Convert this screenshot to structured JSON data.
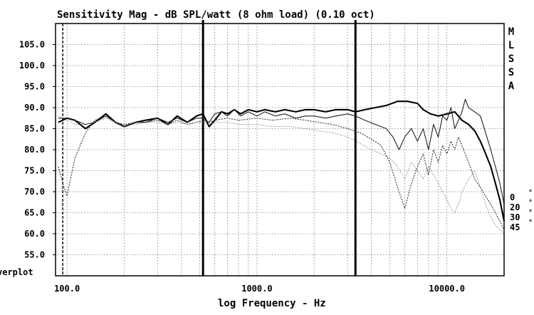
{
  "chart_data": {
    "type": "line",
    "title": "Sensitivity Mag - dB SPL/watt (8 ohm load) (0.10 oct)",
    "xlabel": "log Frequency - Hz",
    "ylabel": "",
    "xscale": "log",
    "xlim": [
      87,
      20000
    ],
    "ylim": [
      50,
      110
    ],
    "yticks": [
      "105.0",
      "100.0",
      "95.0",
      "90.0",
      "85.0",
      "80.0",
      "75.0",
      "70.0",
      "65.0",
      "60.0",
      "55.0"
    ],
    "xticks": [
      "100.0",
      "1000.0",
      "10000.0"
    ],
    "grid": true,
    "side_label": "MLSSA",
    "overlay_label": "verplot",
    "vertical_markers_hz": [
      520,
      3300
    ],
    "legend": [
      "0",
      "20",
      "30",
      "45"
    ],
    "legend_unit": "°",
    "legend_placement": "right",
    "series": [
      {
        "name": "0",
        "style": "solid-bold",
        "x": [
          90,
          100,
          110,
          125,
          140,
          160,
          180,
          200,
          230,
          260,
          300,
          340,
          380,
          430,
          480,
          520,
          560,
          600,
          650,
          700,
          760,
          820,
          900,
          1000,
          1100,
          1250,
          1400,
          1600,
          1800,
          2000,
          2300,
          2600,
          3000,
          3300,
          3700,
          4200,
          4800,
          5500,
          6200,
          7000,
          7500,
          8200,
          9000,
          10000,
          11000,
          12000,
          13000,
          14000,
          15000,
          16000,
          17000,
          18000,
          19000,
          20000
        ],
        "y": [
          86.5,
          87.5,
          87,
          85,
          86.5,
          88.5,
          86.5,
          85.5,
          86.5,
          87,
          87.5,
          86,
          88,
          86.5,
          88,
          88.5,
          85.5,
          87,
          89,
          88.5,
          89.5,
          88.5,
          89.5,
          89,
          89.5,
          89,
          89.5,
          89,
          89.5,
          89.5,
          89,
          89.5,
          89.5,
          89,
          89.5,
          90,
          90.5,
          91.5,
          91.5,
          91,
          89.5,
          88.5,
          88,
          88.5,
          89,
          87,
          86,
          84.5,
          82,
          79,
          76,
          72,
          68,
          63
        ]
      },
      {
        "name": "20",
        "style": "solid-thin",
        "x": [
          90,
          100,
          110,
          125,
          140,
          160,
          180,
          200,
          230,
          260,
          300,
          340,
          380,
          430,
          480,
          520,
          560,
          600,
          650,
          700,
          760,
          820,
          900,
          1000,
          1100,
          1250,
          1400,
          1600,
          1800,
          2000,
          2300,
          2600,
          3000,
          3300,
          3700,
          4200,
          4800,
          5200,
          5600,
          6000,
          6500,
          7000,
          7500,
          8000,
          8500,
          9000,
          9500,
          10000,
          10500,
          11000,
          11500,
          12000,
          12500,
          13000,
          14000,
          15000,
          16000,
          17000,
          18000,
          19000,
          20000
        ],
        "y": [
          87.5,
          87.5,
          87,
          86,
          86.5,
          88,
          86.5,
          85.5,
          86.5,
          86.5,
          87.5,
          86.5,
          87.5,
          86.5,
          87.5,
          87.5,
          86.5,
          88.5,
          89,
          88,
          89.5,
          88,
          89,
          88,
          89,
          88,
          88.5,
          87.5,
          88,
          88,
          87.5,
          88,
          88.5,
          88,
          87,
          86,
          85,
          83,
          80,
          83,
          85,
          82,
          85,
          80,
          86,
          83,
          88,
          87,
          90,
          85,
          87,
          89,
          92,
          90,
          89,
          88,
          84,
          80,
          76,
          72,
          67
        ]
      },
      {
        "name": "30",
        "style": "dotted",
        "x": [
          90,
          95,
          100,
          110,
          125,
          140,
          160,
          180,
          200,
          230,
          260,
          300,
          340,
          380,
          430,
          480,
          520,
          560,
          600,
          700,
          800,
          1000,
          1200,
          1500,
          1800,
          2100,
          2500,
          3000,
          3500,
          4000,
          4500,
          5000,
          5500,
          6000,
          6500,
          7000,
          7500,
          8000,
          8500,
          9000,
          9500,
          10000,
          10500,
          11000,
          11500,
          12000,
          13000,
          14000,
          15000,
          16000,
          17000,
          18000,
          19000,
          20000
        ],
        "y": [
          76,
          72,
          69,
          78,
          84,
          87,
          88,
          86.5,
          86,
          86.5,
          86.5,
          87,
          86,
          87,
          86,
          86.5,
          87,
          86.5,
          87,
          87.5,
          87,
          87.5,
          87,
          87.5,
          87,
          86.5,
          86,
          85,
          84,
          82.5,
          81,
          77,
          71,
          66,
          72,
          76,
          79,
          74,
          80,
          77,
          81,
          79,
          82,
          80,
          83,
          81,
          77,
          73,
          71,
          69,
          67,
          65,
          63,
          61
        ]
      },
      {
        "name": "45",
        "style": "dotted-fine",
        "x": [
          90,
          100,
          110,
          125,
          140,
          160,
          180,
          200,
          230,
          260,
          300,
          340,
          380,
          430,
          480,
          520,
          560,
          600,
          700,
          800,
          1000,
          1200,
          1500,
          1800,
          2100,
          2500,
          3000,
          3500,
          4000,
          4500,
          5000,
          5500,
          6000,
          6500,
          7000,
          7500,
          8000,
          8500,
          9000,
          9500,
          10000,
          10500,
          11000,
          11500,
          12000,
          13000,
          14000,
          15000,
          16000,
          17000,
          18000,
          19000,
          20000
        ],
        "y": [
          88,
          87,
          86,
          86,
          86.5,
          87.5,
          86.5,
          86,
          86,
          86.5,
          86.5,
          86,
          86.5,
          86,
          86.5,
          86.5,
          86,
          86.5,
          86.5,
          86,
          86,
          85.5,
          85.5,
          85,
          84.5,
          84,
          83,
          81.5,
          80,
          79,
          78,
          76,
          73,
          77,
          75,
          73,
          76,
          74,
          72,
          70,
          68,
          66,
          65,
          67,
          70,
          73,
          75,
          71,
          67,
          64,
          62,
          61,
          60
        ]
      }
    ]
  }
}
